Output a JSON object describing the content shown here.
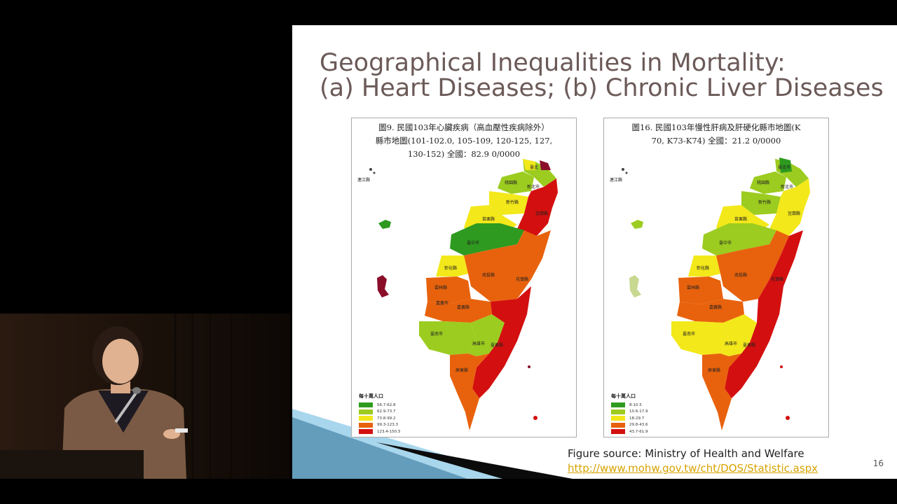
{
  "slide": {
    "title_line1": "Geographical Inequalities in Mortality:",
    "title_line2": "(a) Heart Diseases; (b) Chronic Liver Diseases",
    "source_text": "Figure source: Ministry of Health and Welfare",
    "source_url": "http://www.mohw.gov.tw/cht/DOS/Statistic.aspx",
    "page_number": "16"
  },
  "maps": [
    {
      "caption": "圖9. 民國103年心臟疾病（高血壓性疾病除外）\n縣市地圖(101-102.0, 105-109, 120-125, 127,\n130-152) 全國：82.9 0/0000",
      "legend_title": "每十萬人口",
      "legend": [
        {
          "label": "56.7-62.8",
          "color": "#2e9a1f"
        },
        {
          "label": "62.9-73.7",
          "color": "#9ccc1f"
        },
        {
          "label": "73.8-99.2",
          "color": "#f3e81a"
        },
        {
          "label": "99.3-123.3",
          "color": "#e8620d"
        },
        {
          "label": "123.4-150.5",
          "color": "#d40f0f"
        }
      ],
      "county_labels": [
        "臺北",
        "桃園縣",
        "新北市",
        "新竹縣",
        "宜蘭縣",
        "苗栗縣",
        "臺中市",
        "彰化縣",
        "南投縣",
        "花蓮縣",
        "雲林縣",
        "嘉義市",
        "嘉義縣",
        "臺南市",
        "高雄市",
        "臺東縣",
        "屏東縣",
        "連江縣"
      ]
    },
    {
      "caption": "圖16. 民國103年慢性肝病及肝硬化縣市地圖(K\n70, K73-K74) 全國：21.2 0/0000",
      "legend_title": "每十萬人口",
      "legend": [
        {
          "label": "8-10.5",
          "color": "#2e9a1f"
        },
        {
          "label": "10.6-17.9",
          "color": "#9ccc1f"
        },
        {
          "label": "18-29.7",
          "color": "#f3e81a"
        },
        {
          "label": "29.8-43.6",
          "color": "#e8620d"
        },
        {
          "label": "43.7-61.9",
          "color": "#d40f0f"
        }
      ],
      "county_labels": [
        "臺北市",
        "桃園縣",
        "新北市",
        "新竹縣",
        "宜蘭縣",
        "苗栗縣",
        "臺中市",
        "彰化縣",
        "南投縣",
        "花蓮縣",
        "雲林縣",
        "嘉義縣",
        "臺南市",
        "高雄市",
        "臺東縣",
        "屏東縣",
        "連江縣"
      ]
    }
  ],
  "colors": {
    "title": "#6b5a58",
    "link": "#d7a300",
    "slide_background": "#ffffff",
    "page_background": "#000000"
  }
}
